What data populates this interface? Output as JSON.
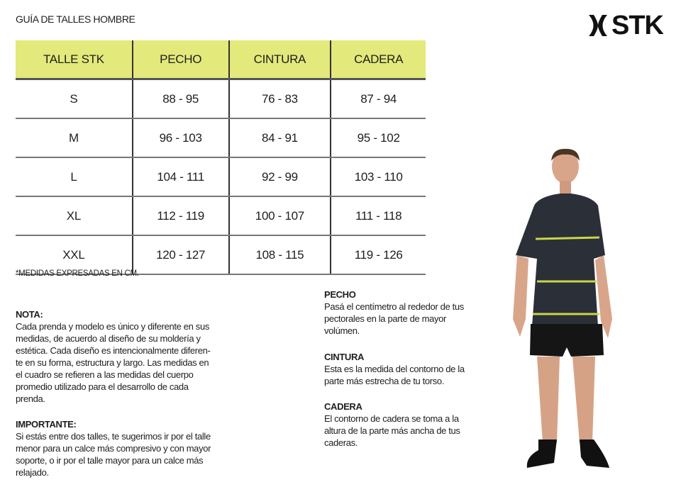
{
  "title": "GUÍA DE TALLES HOMBRE",
  "logo": {
    "text": "STK"
  },
  "table": {
    "headers": [
      "TALLE STK",
      "PECHO",
      "CINTURA",
      "CADERA"
    ],
    "rows": [
      [
        "S",
        "88 - 95",
        "76 - 83",
        "87 - 94"
      ],
      [
        "M",
        "96 - 103",
        "84 - 91",
        "95 - 102"
      ],
      [
        "L",
        "104 - 111",
        "92 - 99",
        "103 - 110"
      ],
      [
        "XL",
        "112 - 119",
        "100 - 107",
        "111 - 118"
      ],
      [
        "XXL",
        "120 - 127",
        "108 - 115",
        "119 - 126"
      ]
    ],
    "header_color": "#e3e97a"
  },
  "footnote": "*MEDIDAS EXPRESADAS EN CM.",
  "nota": {
    "heading": "NOTA:",
    "lines": [
      "Cada prenda y modelo es único y diferente en sus",
      "medidas, de acuerdo al diseño de su moldería y",
      "estética. Cada diseño es intencionalmente diferen-",
      "te en su forma, estructura y largo. Las medidas en",
      "el cuadro se refieren a las medidas del cuerpo",
      "promedio utilizado para el desarrollo de cada",
      "prenda."
    ]
  },
  "importante": {
    "heading": "IMPORTANTE:",
    "lines": [
      "Si estás entre dos talles, te sugerimos ir por el talle",
      "menor para un calce más compresivo y con mayor",
      "soporte, o ir por el talle mayor para un calce más",
      "relajado."
    ]
  },
  "pecho": {
    "heading": "PECHO",
    "lines": [
      "Pasá el centímetro al rededor de tus",
      "pectorales en la parte de mayor",
      "volúmen."
    ]
  },
  "cintura": {
    "heading": "CINTURA",
    "lines": [
      "Esta es la medida del contorno de la",
      "parte más estrecha de tu torso."
    ]
  },
  "cadera": {
    "heading": "CADERA",
    "lines": [
      "El contorno de cadera se toma a la",
      "altura de la parte más ancha de tus",
      "caderas."
    ]
  }
}
